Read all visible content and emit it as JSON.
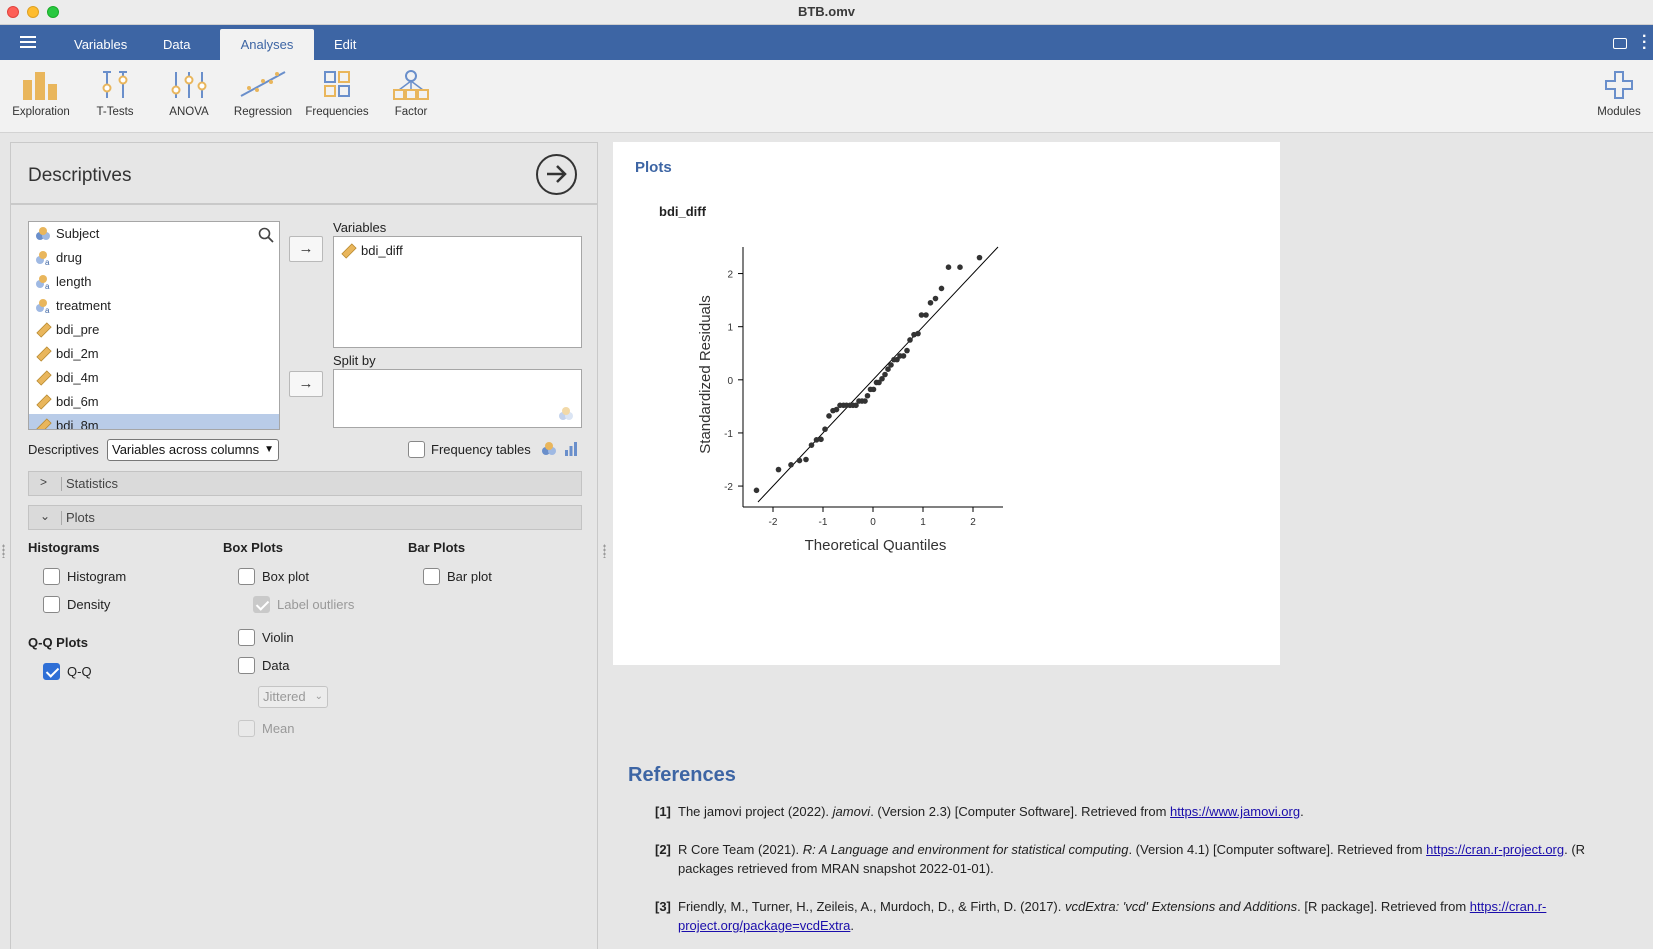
{
  "window": {
    "title": "BTB.omv"
  },
  "tabs": [
    {
      "label": "Variables"
    },
    {
      "label": "Data"
    },
    {
      "label": "Analyses"
    },
    {
      "label": "Edit"
    }
  ],
  "ribbon": {
    "items": [
      {
        "label": "Exploration",
        "icon": "bar-chart-icon"
      },
      {
        "label": "T-Tests",
        "icon": "ttest-icon"
      },
      {
        "label": "ANOVA",
        "icon": "anova-icon"
      },
      {
        "label": "Regression",
        "icon": "regression-icon"
      },
      {
        "label": "Frequencies",
        "icon": "frequencies-icon"
      },
      {
        "label": "Factor",
        "icon": "factor-icon"
      }
    ],
    "modules_label": "Modules"
  },
  "options": {
    "title": "Descriptives",
    "variables": [
      {
        "name": "Subject",
        "type": "nominal"
      },
      {
        "name": "drug",
        "type": "nominal-text"
      },
      {
        "name": "length",
        "type": "nominal-text"
      },
      {
        "name": "treatment",
        "type": "nominal-text"
      },
      {
        "name": "bdi_pre",
        "type": "continuous"
      },
      {
        "name": "bdi_2m",
        "type": "continuous"
      },
      {
        "name": "bdi_4m",
        "type": "continuous"
      },
      {
        "name": "bdi_6m",
        "type": "continuous"
      },
      {
        "name": "bdi_8m",
        "type": "continuous"
      }
    ],
    "variables_target_label": "Variables",
    "variables_target": [
      "bdi_diff"
    ],
    "splitby_label": "Split by",
    "descriptives_label": "Descriptives",
    "descriptives_select": "Variables across columns",
    "frequency_tables_label": "Frequency tables",
    "statistics_section": "Statistics",
    "plots_section": "Plots",
    "histograms": {
      "title": "Histograms",
      "histogram": "Histogram",
      "density": "Density"
    },
    "boxplots": {
      "title": "Box Plots",
      "box_plot": "Box plot",
      "label_outliers": "Label outliers",
      "violin": "Violin",
      "data": "Data",
      "jitter_select": "Jittered",
      "mean": "Mean"
    },
    "barplots": {
      "title": "Bar Plots",
      "bar_plot": "Bar plot"
    },
    "qq": {
      "title": "Q-Q Plots",
      "qq": "Q-Q"
    }
  },
  "results": {
    "plots_heading": "Plots",
    "plot_title": "bdi_diff",
    "chart_data": {
      "type": "scatter",
      "title": "",
      "xlabel": "Theoretical Quantiles",
      "ylabel": "Standardized Residuals",
      "xlim": [
        -2.5,
        2.6
      ],
      "ylim": [
        -2.3,
        2.5
      ],
      "xticks": [
        "-2",
        "-1",
        "0",
        "1",
        "2"
      ],
      "yticks": [
        "-2",
        "-1",
        "0",
        "1",
        "2"
      ],
      "reference_line": [
        [
          -2.3,
          -2.3
        ],
        [
          2.5,
          2.5
        ]
      ],
      "points": [
        [
          -2.33,
          -2.08
        ],
        [
          -1.89,
          -1.69
        ],
        [
          -1.64,
          -1.6
        ],
        [
          -1.47,
          -1.52
        ],
        [
          -1.34,
          -1.5
        ],
        [
          -1.23,
          -1.23
        ],
        [
          -1.13,
          -1.13
        ],
        [
          -1.04,
          -1.12
        ],
        [
          -0.96,
          -0.93
        ],
        [
          -0.88,
          -0.68
        ],
        [
          -0.8,
          -0.58
        ],
        [
          -0.73,
          -0.56
        ],
        [
          -0.66,
          -0.48
        ],
        [
          -0.59,
          -0.48
        ],
        [
          -0.53,
          -0.48
        ],
        [
          -0.46,
          -0.48
        ],
        [
          -0.4,
          -0.48
        ],
        [
          -0.34,
          -0.48
        ],
        [
          -0.28,
          -0.4
        ],
        [
          -0.22,
          -0.4
        ],
        [
          -0.16,
          -0.4
        ],
        [
          -0.11,
          -0.3
        ],
        [
          -0.05,
          -0.18
        ],
        [
          0.01,
          -0.18
        ],
        [
          0.07,
          -0.05
        ],
        [
          0.12,
          -0.05
        ],
        [
          0.18,
          0.02
        ],
        [
          0.24,
          0.1
        ],
        [
          0.3,
          0.2
        ],
        [
          0.36,
          0.28
        ],
        [
          0.42,
          0.38
        ],
        [
          0.48,
          0.38
        ],
        [
          0.54,
          0.45
        ],
        [
          0.61,
          0.45
        ],
        [
          0.68,
          0.55
        ],
        [
          0.74,
          0.75
        ],
        [
          0.82,
          0.85
        ],
        [
          0.9,
          0.87
        ],
        [
          0.97,
          1.22
        ],
        [
          1.06,
          1.22
        ],
        [
          1.15,
          1.45
        ],
        [
          1.25,
          1.53
        ],
        [
          1.37,
          1.72
        ],
        [
          1.51,
          2.12
        ],
        [
          1.74,
          2.12
        ],
        [
          2.13,
          2.3
        ]
      ]
    },
    "references_heading": "References",
    "references": [
      {
        "num": "[1]",
        "pre": "The jamovi project (2022). ",
        "italic": "jamovi",
        "post": ". (Version 2.3) [Computer Software]. Retrieved from ",
        "link": "https://www.jamovi.org",
        "tail": "."
      },
      {
        "num": "[2]",
        "pre": "R Core Team (2021). ",
        "italic": "R: A Language and environment for statistical computing",
        "post": ". (Version 4.1) [Computer software]. Retrieved from ",
        "link": "https://cran.r-project.org",
        "tail": ". (R packages retrieved from MRAN snapshot 2022-01-01)."
      },
      {
        "num": "[3]",
        "pre": "Friendly, M., Turner, H., Zeileis, A., Murdoch, D., & Firth, D. (2017). ",
        "italic": "vcdExtra: 'vcd' Extensions and Additions",
        "post": ". [R package]. Retrieved from ",
        "link": "https://cran.r-project.org/package=vcdExtra",
        "tail": "."
      }
    ]
  },
  "colors": {
    "accent": "#3d65a4",
    "checkbox_checked": "#2f6fd6",
    "selected_row": "#b9cce8"
  }
}
